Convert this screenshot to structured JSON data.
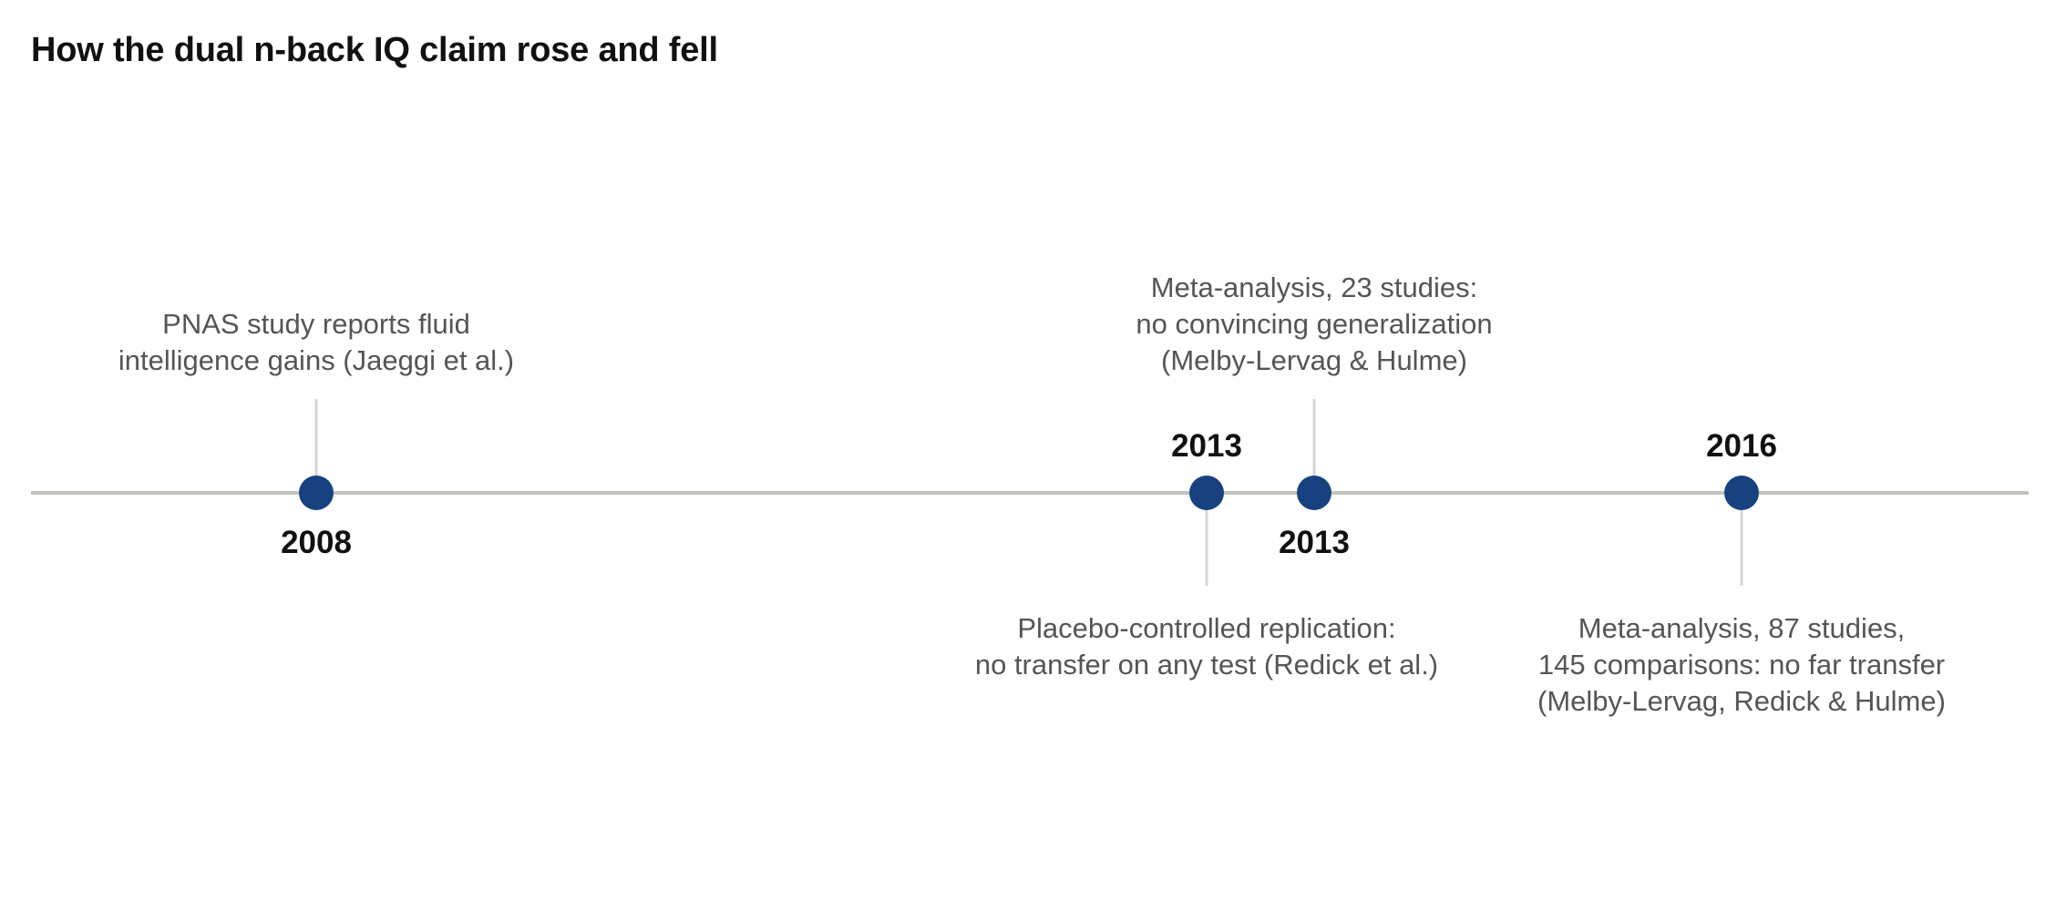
{
  "title": "How the dual n-back IQ claim rose and fell",
  "colors": {
    "axis": "#c4c4bf",
    "marker": "#17427f",
    "stem": "#d6d6d6",
    "year_text": "#111111",
    "desc_text": "#555555"
  },
  "events": [
    {
      "year": "2008",
      "side": "above",
      "lines": [
        "PNAS study reports fluid",
        "intelligence gains (Jaeggi et al.)"
      ]
    },
    {
      "year": "2013",
      "side": "below",
      "lines": [
        "Placebo-controlled replication:",
        "no transfer on any test (Redick et al.)"
      ]
    },
    {
      "year": "2013",
      "side": "above",
      "lines": [
        "Meta-analysis, 23 studies:",
        "no convincing generalization",
        "(Melby-Lervag & Hulme)"
      ]
    },
    {
      "year": "2016",
      "side": "below",
      "lines": [
        "Meta-analysis, 87 studies,",
        "145 comparisons: no far transfer",
        "(Melby-Lervag, Redick & Hulme)"
      ]
    }
  ]
}
